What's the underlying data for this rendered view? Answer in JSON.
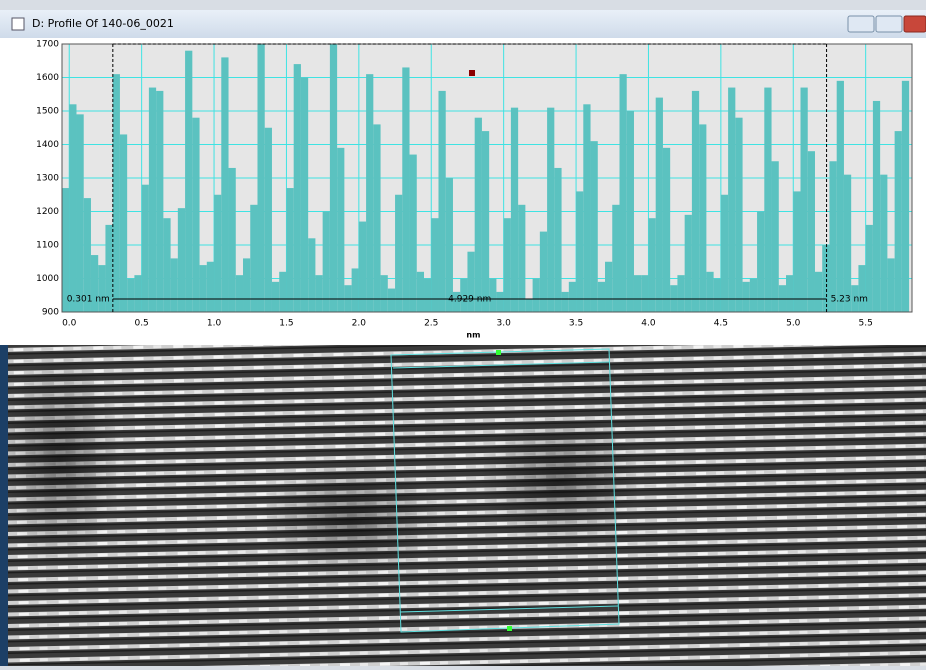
{
  "window": {
    "title": "D: Profile Of 140-06_0021"
  },
  "chart_data": {
    "type": "histogram",
    "xlabel": "nm",
    "color": "#5bc2c0",
    "grid": true,
    "xlim": [
      -0.05,
      5.82
    ],
    "ylim": [
      900,
      1700
    ],
    "xticks": [
      {
        "value": 0,
        "label": "0.0"
      },
      0.5,
      {
        "value": 1,
        "label": "1.0"
      },
      1.5,
      {
        "value": 2,
        "label": "2.0"
      },
      2.5,
      {
        "value": 3,
        "label": "3.0"
      },
      3.5,
      {
        "value": 4,
        "label": "4.0"
      },
      4.5,
      {
        "value": 5,
        "label": "5.0"
      },
      5.5
    ],
    "yticks": [
      900,
      1000,
      1100,
      1200,
      1300,
      1400,
      1500,
      1600,
      1700
    ],
    "bins": [
      -0.05,
      0,
      0.05,
      0.1,
      0.15,
      0.2,
      0.25,
      0.3,
      0.35,
      0.4,
      0.45,
      0.5,
      0.55,
      0.6,
      0.65,
      0.7,
      0.75,
      0.8,
      0.85,
      0.9,
      0.95,
      1,
      1.05,
      1.1,
      1.15,
      1.2,
      1.25,
      1.3,
      1.35,
      1.4,
      1.45,
      1.5,
      1.55,
      1.6,
      1.65,
      1.7,
      1.75,
      1.8,
      1.85,
      1.9,
      1.95,
      2,
      2.05,
      2.1,
      2.15,
      2.2,
      2.25,
      2.3,
      2.35,
      2.4,
      2.45,
      2.5,
      2.55,
      2.6,
      2.65,
      2.7,
      2.75,
      2.8,
      2.85,
      2.9,
      2.95,
      3,
      3.05,
      3.1,
      3.15,
      3.2,
      3.25,
      3.3,
      3.35,
      3.4,
      3.45,
      3.5,
      3.55,
      3.6,
      3.65,
      3.7,
      3.75,
      3.8,
      3.85,
      3.9,
      3.95,
      4,
      4.05,
      4.1,
      4.15,
      4.2,
      4.25,
      4.3,
      4.35,
      4.4,
      4.45,
      4.5,
      4.55,
      4.6,
      4.65,
      4.7,
      4.75,
      4.8,
      4.85,
      4.9,
      4.95,
      5,
      5.05,
      5.1,
      5.15,
      5.2,
      5.25,
      5.3,
      5.35,
      5.4,
      5.45,
      5.5,
      5.55,
      5.6,
      5.65,
      5.7,
      5.75,
      5.8
    ],
    "counts": [
      1270,
      1520,
      1490,
      1240,
      1070,
      1040,
      1160,
      1610,
      1430,
      1000,
      1010,
      1280,
      1570,
      1560,
      1180,
      1060,
      1210,
      1680,
      1480,
      1040,
      1050,
      1250,
      1660,
      1330,
      1010,
      1060,
      1220,
      1700,
      1450,
      990,
      1020,
      1270,
      1640,
      1600,
      1120,
      1010,
      1200,
      1700,
      1390,
      980,
      1030,
      1170,
      1610,
      1460,
      1010,
      970,
      1250,
      1630,
      1370,
      1020,
      1000,
      1180,
      1560,
      1300,
      960,
      1000,
      1080,
      1480,
      1440,
      1000,
      960,
      1180,
      1510,
      1220,
      940,
      1000,
      1140,
      1510,
      1330,
      960,
      990,
      1260,
      1520,
      1410,
      990,
      1050,
      1220,
      1610,
      1500,
      1010,
      1010,
      1180,
      1540,
      1390,
      980,
      1010,
      1190,
      1560,
      1460,
      1020,
      1000,
      1250,
      1570,
      1480,
      990,
      1000,
      1200,
      1570,
      1350,
      980,
      1010,
      1260,
      1570,
      1380,
      1020,
      1100,
      1350,
      1590,
      1310,
      980,
      1040,
      1160,
      1530,
      1310,
      1060,
      1440,
      1590
    ],
    "measurement": {
      "start": 0.301,
      "end": 5.23,
      "start_label": "0.301 nm",
      "end_label": "5.23 nm",
      "length_label": "4.929 nm"
    }
  }
}
